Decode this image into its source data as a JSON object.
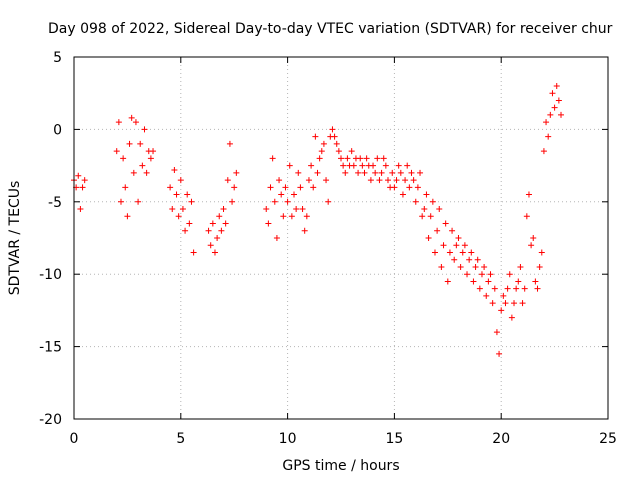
{
  "chart_data": {
    "type": "scatter",
    "title": "Day 098 of 2022, Sidereal Day-to-day VTEC variation (SDTVAR) for receiver chur",
    "xlabel": "GPS time / hours",
    "ylabel": "SDTVAR / TECUs",
    "xlim": [
      0,
      25
    ],
    "ylim": [
      -20,
      5
    ],
    "x_ticks": [
      0,
      5,
      10,
      15,
      20,
      25
    ],
    "x_tick_labels": [
      "0",
      "5",
      "10",
      "15",
      "20",
      "25"
    ],
    "y_ticks": [
      -20,
      -15,
      -10,
      -5,
      0,
      5
    ],
    "y_tick_labels": [
      "-20",
      "-15",
      "-10",
      "-5",
      "0",
      "5"
    ],
    "grid": true,
    "marker": "plus",
    "color": "#ff0000",
    "series": [
      {
        "name": "SDTVAR",
        "x": [
          0.0,
          0.1,
          0.2,
          0.3,
          0.4,
          0.5,
          2.0,
          2.1,
          2.2,
          2.3,
          2.4,
          2.5,
          2.6,
          2.7,
          2.8,
          2.9,
          3.0,
          3.1,
          3.2,
          3.3,
          3.4,
          3.5,
          3.6,
          3.7,
          4.5,
          4.6,
          4.7,
          4.8,
          4.9,
          5.0,
          5.1,
          5.2,
          5.3,
          5.4,
          5.5,
          5.6,
          6.3,
          6.4,
          6.5,
          6.6,
          6.7,
          6.8,
          6.9,
          7.0,
          7.1,
          7.2,
          7.3,
          7.4,
          7.5,
          7.6,
          9.0,
          9.1,
          9.2,
          9.3,
          9.4,
          9.5,
          9.6,
          9.7,
          9.8,
          9.9,
          10.0,
          10.1,
          10.2,
          10.3,
          10.4,
          10.5,
          10.6,
          10.7,
          10.8,
          10.9,
          11.0,
          11.1,
          11.2,
          11.3,
          11.4,
          11.5,
          11.6,
          11.7,
          11.8,
          11.9,
          12.0,
          12.1,
          12.2,
          12.3,
          12.4,
          12.5,
          12.6,
          12.7,
          12.8,
          12.9,
          13.0,
          13.1,
          13.2,
          13.3,
          13.4,
          13.5,
          13.6,
          13.7,
          13.8,
          13.9,
          14.0,
          14.1,
          14.2,
          14.3,
          14.4,
          14.5,
          14.6,
          14.7,
          14.8,
          14.9,
          15.0,
          15.1,
          15.2,
          15.3,
          15.4,
          15.5,
          15.6,
          15.7,
          15.8,
          15.9,
          16.0,
          16.1,
          16.2,
          16.3,
          16.4,
          16.5,
          16.6,
          16.7,
          16.8,
          16.9,
          17.0,
          17.1,
          17.2,
          17.3,
          17.4,
          17.5,
          17.6,
          17.7,
          17.8,
          17.9,
          18.0,
          18.1,
          18.2,
          18.3,
          18.4,
          18.5,
          18.6,
          18.7,
          18.8,
          18.9,
          19.0,
          19.1,
          19.2,
          19.3,
          19.4,
          19.5,
          19.6,
          19.7,
          19.8,
          19.9,
          20.0,
          20.1,
          20.2,
          20.3,
          20.4,
          20.5,
          20.6,
          20.7,
          20.8,
          20.9,
          21.0,
          21.1,
          21.2,
          21.3,
          21.4,
          21.5,
          21.6,
          21.7,
          21.8,
          21.9,
          22.0,
          22.1,
          22.2,
          22.3,
          22.4,
          22.5,
          22.6,
          22.7,
          22.8
        ],
        "y": [
          -3.5,
          -4.0,
          -3.2,
          -5.5,
          -4.0,
          -3.5,
          -1.5,
          0.5,
          -5.0,
          -2.0,
          -4.0,
          -6.0,
          -1.0,
          0.8,
          -3.0,
          0.5,
          -5.0,
          -1.0,
          -2.5,
          0.0,
          -3.0,
          -1.5,
          -2.0,
          -1.5,
          -4.0,
          -5.5,
          -2.8,
          -4.5,
          -6.0,
          -3.5,
          -5.5,
          -7.0,
          -4.5,
          -6.5,
          -5.0,
          -8.5,
          -7.0,
          -8.0,
          -6.5,
          -8.5,
          -7.5,
          -6.0,
          -7.0,
          -5.5,
          -6.5,
          -3.5,
          -1.0,
          -5.0,
          -4.0,
          -3.0,
          -5.5,
          -6.5,
          -4.0,
          -2.0,
          -5.0,
          -7.5,
          -3.5,
          -4.5,
          -6.0,
          -4.0,
          -5.0,
          -2.5,
          -6.0,
          -4.5,
          -5.5,
          -3.0,
          -4.0,
          -5.5,
          -7.0,
          -6.0,
          -3.5,
          -2.5,
          -4.0,
          -0.5,
          -3.0,
          -2.0,
          -1.5,
          -1.0,
          -3.5,
          -5.0,
          -0.5,
          0.0,
          -0.5,
          -1.0,
          -1.5,
          -2.0,
          -2.5,
          -3.0,
          -2.0,
          -2.5,
          -1.5,
          -2.5,
          -2.0,
          -3.0,
          -2.0,
          -2.5,
          -3.0,
          -2.0,
          -2.5,
          -3.5,
          -2.5,
          -3.0,
          -2.0,
          -3.5,
          -3.0,
          -2.0,
          -2.5,
          -3.5,
          -4.0,
          -3.0,
          -4.0,
          -3.5,
          -2.5,
          -3.0,
          -4.5,
          -3.5,
          -2.5,
          -4.0,
          -3.0,
          -3.5,
          -5.0,
          -4.0,
          -3.0,
          -6.0,
          -5.5,
          -4.5,
          -7.5,
          -6.0,
          -5.0,
          -8.5,
          -7.0,
          -5.5,
          -9.5,
          -8.0,
          -6.5,
          -10.5,
          -8.5,
          -7.0,
          -9.0,
          -8.0,
          -7.5,
          -9.5,
          -8.5,
          -8.0,
          -10.0,
          -9.0,
          -8.5,
          -10.5,
          -9.5,
          -9.0,
          -11.0,
          -10.0,
          -9.5,
          -11.5,
          -10.5,
          -10.0,
          -12.0,
          -11.0,
          -14.0,
          -15.5,
          -12.5,
          -11.5,
          -12.0,
          -11.0,
          -10.0,
          -13.0,
          -12.0,
          -11.0,
          -10.5,
          -9.5,
          -12.0,
          -11.0,
          -6.0,
          -4.5,
          -8.0,
          -7.5,
          -10.5,
          -11.0,
          -9.5,
          -8.5,
          -1.5,
          0.5,
          -0.5,
          1.0,
          2.5,
          1.5,
          3.0,
          2.0,
          1.0
        ]
      }
    ]
  }
}
